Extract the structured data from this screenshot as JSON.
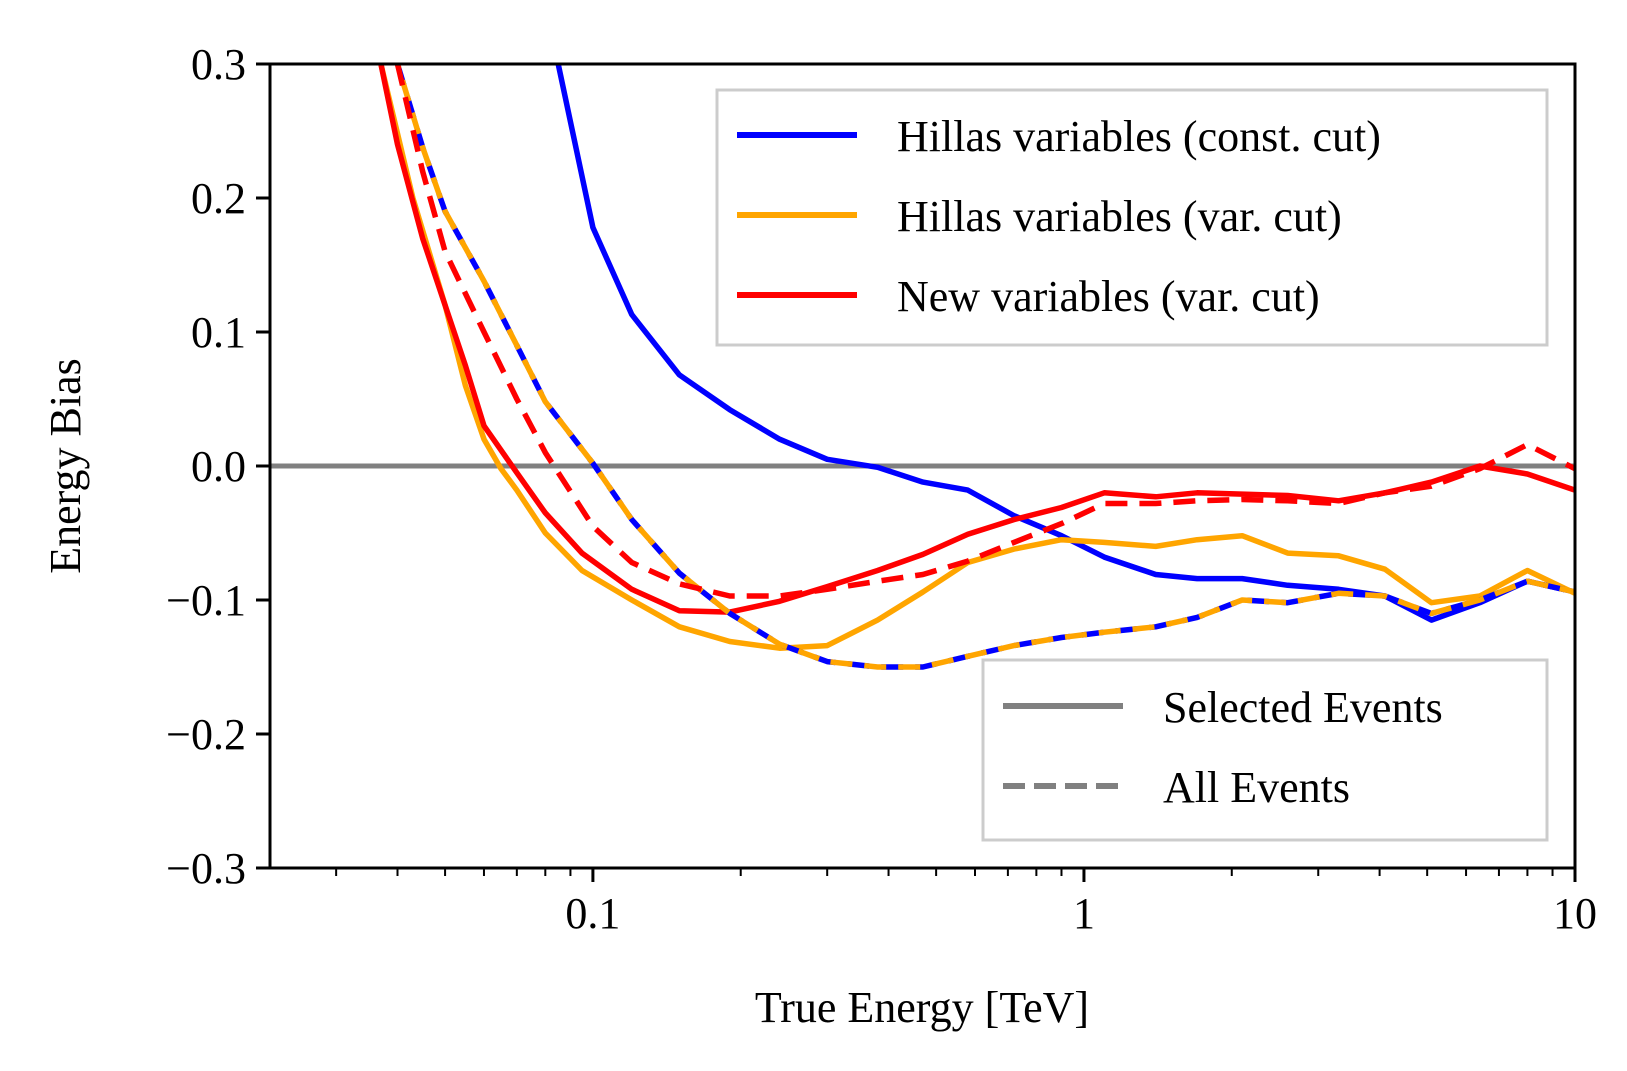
{
  "chart_data": {
    "type": "line",
    "xlabel": "True Energy [TeV]",
    "ylabel": "Energy Bias",
    "xscale": "log",
    "xlim": [
      0.022,
      10
    ],
    "ylim": [
      -0.3,
      0.3
    ],
    "xticks": [
      0.1,
      1,
      10
    ],
    "xtick_labels": [
      "0.1",
      "1",
      "10"
    ],
    "yticks": [
      -0.3,
      -0.2,
      -0.1,
      0.0,
      0.1,
      0.2,
      0.3
    ],
    "ytick_labels": [
      "−0.3",
      "−0.2",
      "−0.1",
      "0.0",
      "0.1",
      "0.2",
      "0.3"
    ],
    "grid": false,
    "reference_line": {
      "y": 0.0,
      "color": "#808080"
    },
    "legend_series": {
      "placement": "top-right",
      "entries": [
        {
          "label": "Hillas variables (const. cut)",
          "color": "#0000ff"
        },
        {
          "label": "Hillas variables (var. cut)",
          "color": "#ffa500"
        },
        {
          "label": "New variables (var. cut)",
          "color": "#ff0000"
        }
      ]
    },
    "legend_style": {
      "placement": "bottom-right",
      "entries": [
        {
          "label": "Selected Events",
          "style": "solid",
          "color": "#808080"
        },
        {
          "label": "All Events",
          "style": "dashed",
          "color": "#808080"
        }
      ]
    },
    "series": [
      {
        "name": "Hillas variables (const. cut)",
        "style": "solid",
        "color": "#0000ff",
        "x_unit": "TeV",
        "points": [
          [
            0.085,
            0.3
          ],
          [
            0.1,
            0.178
          ],
          [
            0.12,
            0.113
          ],
          [
            0.15,
            0.068
          ],
          [
            0.19,
            0.042
          ],
          [
            0.24,
            0.02
          ],
          [
            0.3,
            0.005
          ],
          [
            0.38,
            -0.001
          ],
          [
            0.47,
            -0.012
          ],
          [
            0.58,
            -0.018
          ],
          [
            0.72,
            -0.037
          ],
          [
            0.9,
            -0.052
          ],
          [
            1.1,
            -0.068
          ],
          [
            1.4,
            -0.081
          ],
          [
            1.7,
            -0.084
          ],
          [
            2.1,
            -0.084
          ],
          [
            2.6,
            -0.089
          ],
          [
            3.3,
            -0.092
          ],
          [
            4.1,
            -0.097
          ],
          [
            5.1,
            -0.115
          ],
          [
            6.4,
            -0.102
          ],
          [
            8.0,
            -0.086
          ],
          [
            10.0,
            -0.094
          ]
        ]
      },
      {
        "name": "Hillas variables (const. cut)",
        "style": "dashed",
        "color": "#0000ff",
        "x_unit": "TeV",
        "points": [
          [
            0.04,
            0.3
          ],
          [
            0.045,
            0.238
          ],
          [
            0.05,
            0.19
          ],
          [
            0.06,
            0.138
          ],
          [
            0.07,
            0.09
          ],
          [
            0.08,
            0.048
          ],
          [
            0.1,
            0.002
          ],
          [
            0.12,
            -0.04
          ],
          [
            0.15,
            -0.08
          ],
          [
            0.19,
            -0.11
          ],
          [
            0.24,
            -0.133
          ],
          [
            0.3,
            -0.146
          ],
          [
            0.38,
            -0.15
          ],
          [
            0.47,
            -0.15
          ],
          [
            0.58,
            -0.142
          ],
          [
            0.72,
            -0.134
          ],
          [
            0.9,
            -0.128
          ],
          [
            1.1,
            -0.124
          ],
          [
            1.4,
            -0.12
          ],
          [
            1.7,
            -0.113
          ],
          [
            2.1,
            -0.1
          ],
          [
            2.6,
            -0.102
          ],
          [
            3.3,
            -0.095
          ],
          [
            4.1,
            -0.097
          ],
          [
            5.1,
            -0.11
          ],
          [
            6.4,
            -0.1
          ],
          [
            8.0,
            -0.086
          ],
          [
            10.0,
            -0.094
          ]
        ]
      },
      {
        "name": "Hillas variables (var. cut)",
        "style": "solid",
        "color": "#ffa500",
        "x_unit": "TeV",
        "points": [
          [
            0.037,
            0.3
          ],
          [
            0.043,
            0.2
          ],
          [
            0.05,
            0.12
          ],
          [
            0.055,
            0.06
          ],
          [
            0.06,
            0.02
          ],
          [
            0.065,
            -0.002
          ],
          [
            0.07,
            -0.018
          ],
          [
            0.08,
            -0.05
          ],
          [
            0.095,
            -0.078
          ],
          [
            0.12,
            -0.1
          ],
          [
            0.15,
            -0.12
          ],
          [
            0.19,
            -0.131
          ],
          [
            0.24,
            -0.136
          ],
          [
            0.3,
            -0.134
          ],
          [
            0.38,
            -0.115
          ],
          [
            0.47,
            -0.094
          ],
          [
            0.58,
            -0.072
          ],
          [
            0.72,
            -0.062
          ],
          [
            0.9,
            -0.055
          ],
          [
            1.1,
            -0.057
          ],
          [
            1.4,
            -0.06
          ],
          [
            1.7,
            -0.055
          ],
          [
            2.1,
            -0.052
          ],
          [
            2.6,
            -0.065
          ],
          [
            3.3,
            -0.067
          ],
          [
            4.1,
            -0.077
          ],
          [
            5.1,
            -0.102
          ],
          [
            6.4,
            -0.097
          ],
          [
            8.0,
            -0.078
          ],
          [
            10.0,
            -0.095
          ]
        ]
      },
      {
        "name": "Hillas variables (var. cut)",
        "style": "dashed",
        "color": "#ffa500",
        "x_unit": "TeV",
        "points": [
          [
            0.04,
            0.3
          ],
          [
            0.045,
            0.238
          ],
          [
            0.05,
            0.19
          ],
          [
            0.06,
            0.138
          ],
          [
            0.07,
            0.09
          ],
          [
            0.08,
            0.048
          ],
          [
            0.1,
            0.002
          ],
          [
            0.12,
            -0.04
          ],
          [
            0.15,
            -0.08
          ],
          [
            0.19,
            -0.11
          ],
          [
            0.24,
            -0.133
          ],
          [
            0.3,
            -0.146
          ],
          [
            0.38,
            -0.15
          ],
          [
            0.47,
            -0.15
          ],
          [
            0.58,
            -0.142
          ],
          [
            0.72,
            -0.134
          ],
          [
            0.9,
            -0.128
          ],
          [
            1.1,
            -0.124
          ],
          [
            1.4,
            -0.12
          ],
          [
            1.7,
            -0.113
          ],
          [
            2.1,
            -0.1
          ],
          [
            2.6,
            -0.102
          ],
          [
            3.3,
            -0.095
          ],
          [
            4.1,
            -0.097
          ],
          [
            5.1,
            -0.11
          ],
          [
            6.4,
            -0.1
          ],
          [
            8.0,
            -0.086
          ],
          [
            10.0,
            -0.094
          ]
        ]
      },
      {
        "name": "New variables (var. cut)",
        "style": "solid",
        "color": "#ff0000",
        "x_unit": "TeV",
        "points": [
          [
            0.037,
            0.3
          ],
          [
            0.04,
            0.24
          ],
          [
            0.045,
            0.17
          ],
          [
            0.05,
            0.12
          ],
          [
            0.055,
            0.075
          ],
          [
            0.06,
            0.03
          ],
          [
            0.07,
            -0.005
          ],
          [
            0.08,
            -0.035
          ],
          [
            0.095,
            -0.065
          ],
          [
            0.12,
            -0.092
          ],
          [
            0.15,
            -0.108
          ],
          [
            0.19,
            -0.109
          ],
          [
            0.24,
            -0.101
          ],
          [
            0.3,
            -0.09
          ],
          [
            0.38,
            -0.078
          ],
          [
            0.47,
            -0.066
          ],
          [
            0.58,
            -0.051
          ],
          [
            0.72,
            -0.04
          ],
          [
            0.9,
            -0.031
          ],
          [
            1.1,
            -0.02
          ],
          [
            1.4,
            -0.023
          ],
          [
            1.7,
            -0.02
          ],
          [
            2.1,
            -0.021
          ],
          [
            2.6,
            -0.022
          ],
          [
            3.3,
            -0.026
          ],
          [
            4.1,
            -0.02
          ],
          [
            5.1,
            -0.012
          ],
          [
            6.4,
            0.0
          ],
          [
            8.0,
            -0.006
          ],
          [
            10.0,
            -0.018
          ]
        ]
      },
      {
        "name": "New variables (var. cut)",
        "style": "dashed",
        "color": "#ff0000",
        "x_unit": "TeV",
        "points": [
          [
            0.04,
            0.3
          ],
          [
            0.045,
            0.22
          ],
          [
            0.05,
            0.16
          ],
          [
            0.06,
            0.1
          ],
          [
            0.07,
            0.05
          ],
          [
            0.08,
            0.01
          ],
          [
            0.1,
            -0.045
          ],
          [
            0.12,
            -0.072
          ],
          [
            0.15,
            -0.088
          ],
          [
            0.19,
            -0.097
          ],
          [
            0.24,
            -0.097
          ],
          [
            0.3,
            -0.092
          ],
          [
            0.38,
            -0.086
          ],
          [
            0.47,
            -0.081
          ],
          [
            0.58,
            -0.071
          ],
          [
            0.72,
            -0.057
          ],
          [
            0.9,
            -0.043
          ],
          [
            1.1,
            -0.028
          ],
          [
            1.4,
            -0.028
          ],
          [
            1.7,
            -0.026
          ],
          [
            2.1,
            -0.025
          ],
          [
            2.6,
            -0.026
          ],
          [
            3.3,
            -0.028
          ],
          [
            4.1,
            -0.02
          ],
          [
            5.1,
            -0.015
          ],
          [
            6.4,
            -0.002
          ],
          [
            8.0,
            0.016
          ],
          [
            10.0,
            -0.002
          ]
        ]
      }
    ]
  }
}
